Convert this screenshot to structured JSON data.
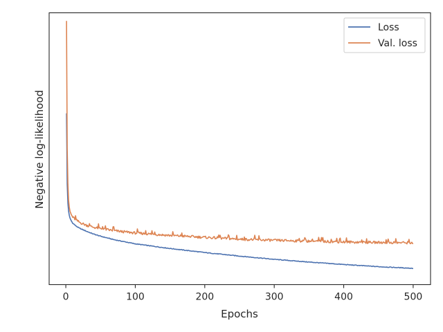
{
  "chart_data": {
    "type": "line",
    "xlabel": "Epochs",
    "ylabel": "Negative log-likelihood",
    "xlim": [
      -24,
      525
    ],
    "ylim": [
      0.0,
      1.0
    ],
    "x_ticks": [
      0,
      100,
      200,
      300,
      400,
      500
    ],
    "y_ticks_shown": false,
    "grid": false,
    "legend": "top-right",
    "series": [
      {
        "name": "Loss",
        "color": "#4c72b0",
        "x": [
          1,
          2,
          3,
          4,
          5,
          6,
          8,
          10,
          15,
          20,
          30,
          40,
          50,
          70,
          100,
          150,
          200,
          250,
          300,
          350,
          400,
          450,
          500
        ],
        "y": [
          0.63,
          0.37,
          0.3,
          0.27,
          0.255,
          0.245,
          0.234,
          0.226,
          0.215,
          0.207,
          0.196,
          0.186,
          0.178,
          0.165,
          0.15,
          0.133,
          0.118,
          0.105,
          0.093,
          0.083,
          0.074,
          0.066,
          0.06
        ]
      },
      {
        "name": "Val. loss",
        "color": "#dd8452",
        "x": [
          1,
          2,
          3,
          4,
          5,
          6,
          8,
          10,
          15,
          20,
          30,
          40,
          50,
          70,
          100,
          150,
          200,
          250,
          300,
          350,
          400,
          450,
          500
        ],
        "y": [
          0.97,
          0.5,
          0.37,
          0.31,
          0.285,
          0.27,
          0.256,
          0.248,
          0.237,
          0.229,
          0.218,
          0.211,
          0.206,
          0.198,
          0.19,
          0.181,
          0.174,
          0.167,
          0.163,
          0.16,
          0.157,
          0.155,
          0.154
        ]
      }
    ]
  }
}
